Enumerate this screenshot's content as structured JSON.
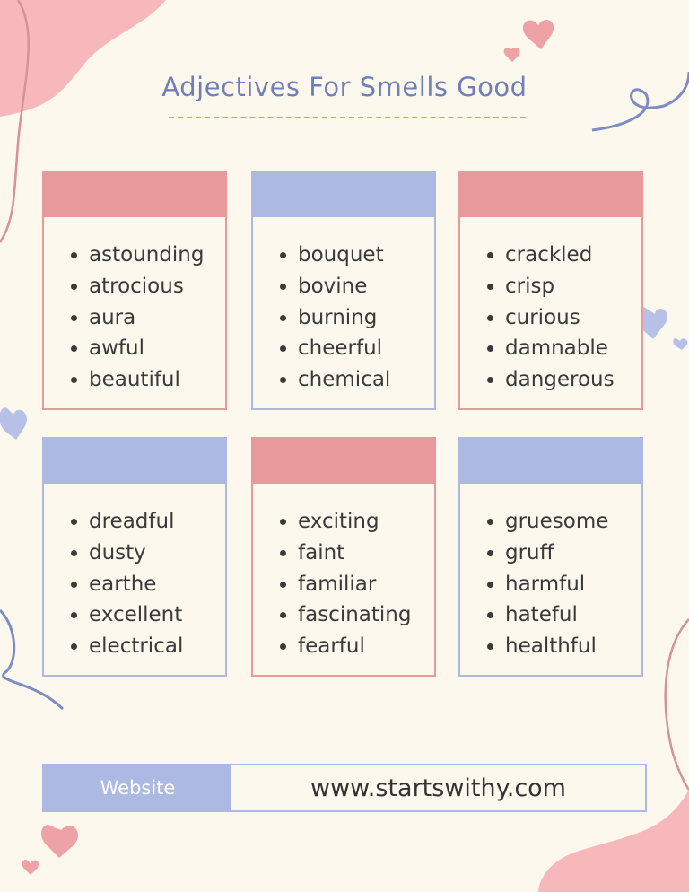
{
  "title": "Adjectives For Smells Good",
  "cards": [
    {
      "color": "pink",
      "words": [
        "astounding",
        "atrocious",
        "aura",
        "awful",
        "beautiful"
      ]
    },
    {
      "color": "blue",
      "words": [
        "bouquet",
        "bovine",
        "burning",
        "cheerful",
        "chemical"
      ]
    },
    {
      "color": "pink",
      "words": [
        "crackled",
        "crisp",
        "curious",
        "damnable",
        "dangerous"
      ]
    },
    {
      "color": "blue",
      "words": [
        "dreadful",
        "dusty",
        "earthe",
        "excellent",
        "electrical"
      ]
    },
    {
      "color": "pink",
      "words": [
        "exciting",
        "faint",
        "familiar",
        "fascinating",
        "fearful"
      ]
    },
    {
      "color": "blue",
      "words": [
        "gruesome",
        "gruff",
        "harmful",
        "hateful",
        "healthful"
      ]
    }
  ],
  "footer": {
    "label": "Website",
    "value": "www.startswithy.com"
  },
  "colors": {
    "pink": "#e8999c",
    "blue": "#acb9e3",
    "background": "#fdf8ee",
    "title": "#6f7fb8"
  }
}
